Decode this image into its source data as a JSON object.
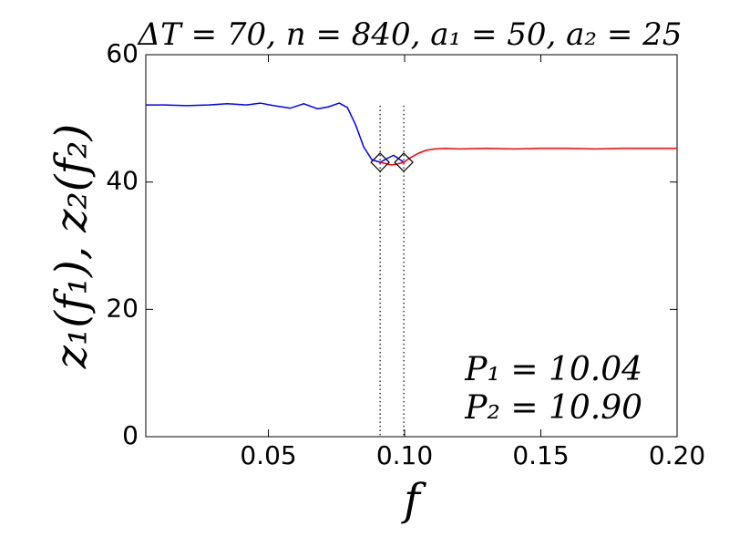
{
  "chart_data": {
    "type": "line",
    "title": "ΔT = 70, n = 840, a₁ = 50, a₂ = 25",
    "x_label": "f",
    "y_label": "z₁(f₁), z₂(f₂)",
    "annotations": [
      "P₁ = 10.04",
      "P₂ = 10.90"
    ],
    "xlim": [
      0.005,
      0.2
    ],
    "ylim": [
      0,
      60
    ],
    "xticks": [
      0.05,
      {
        "value": 0.1,
        "label": "0.10"
      },
      0.15,
      {
        "value": 0.2,
        "label": "0.20"
      }
    ],
    "yticks": [
      0,
      20,
      40,
      60
    ],
    "series": [
      {
        "color": "#0000ff",
        "x": [
          0.005,
          0.012,
          0.02,
          0.028,
          0.035,
          0.042,
          0.047,
          0.052,
          0.058,
          0.063,
          0.068,
          0.072,
          0.076,
          0.079,
          0.082,
          0.085,
          0.088,
          0.091,
          0.094,
          0.096,
          0.098,
          0.0997
        ],
        "values": [
          52.1,
          52.1,
          52.0,
          52.1,
          52.3,
          52.1,
          52.4,
          52.0,
          51.6,
          52.3,
          51.5,
          51.8,
          52.4,
          51.7,
          49.0,
          45.5,
          43.5,
          43.1,
          43.8,
          44.2,
          43.6,
          43.1
        ]
      },
      {
        "color": "#ff0000",
        "x": [
          0.091,
          0.093,
          0.095,
          0.097,
          0.0997,
          0.102,
          0.105,
          0.108,
          0.111,
          0.115,
          0.12,
          0.13,
          0.14,
          0.15,
          0.16,
          0.17,
          0.18,
          0.19,
          0.2
        ],
        "values": [
          43.1,
          42.9,
          42.7,
          42.8,
          43.1,
          43.8,
          44.5,
          45.0,
          45.2,
          45.3,
          45.2,
          45.3,
          45.2,
          45.3,
          45.3,
          45.2,
          45.3,
          45.3,
          45.3
        ]
      }
    ],
    "vlines": [
      0.091,
      0.0997
    ],
    "markers": {
      "x": [
        0.091,
        0.0997
      ],
      "y": [
        43.1,
        43.1
      ]
    }
  }
}
